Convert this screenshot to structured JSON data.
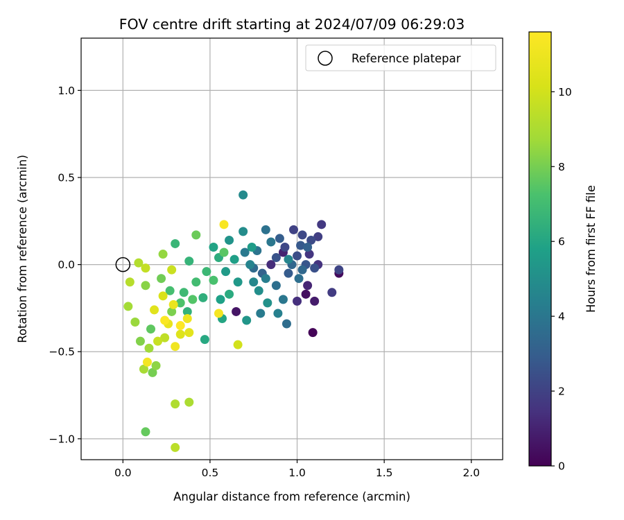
{
  "chart_data": {
    "type": "scatter",
    "title": "FOV centre drift starting at 2024/07/09 06:29:03",
    "xlabel": "Angular distance from reference (arcmin)",
    "ylabel": "Rotation from reference (arcmin)",
    "xlim": [
      -0.24,
      2.18
    ],
    "ylim": [
      -1.12,
      1.3
    ],
    "xticks": [
      0.0,
      0.5,
      1.0,
      1.5,
      2.0
    ],
    "xtick_labels": [
      "0.0",
      "0.5",
      "1.0",
      "1.5",
      "2.0"
    ],
    "yticks": [
      -1.0,
      -0.5,
      0.0,
      0.5,
      1.0
    ],
    "ytick_labels": [
      "−1.0",
      "−0.5",
      "0.0",
      "0.5",
      "1.0"
    ],
    "grid": true,
    "legend": {
      "position": "top-right",
      "entries": [
        "Reference platepar"
      ]
    },
    "reference_point": {
      "x": 0.0,
      "y": 0.0,
      "label": "Reference platepar"
    },
    "colorbar": {
      "label": "Hours from first FF file",
      "colormap": "viridis",
      "range": [
        0,
        11.6
      ],
      "ticks": [
        0,
        2,
        4,
        6,
        8,
        10
      ],
      "tick_labels": [
        "0",
        "2",
        "4",
        "6",
        "8",
        "10"
      ]
    },
    "points": [
      {
        "x": 1.09,
        "y": -0.39,
        "c": 0.1
      },
      {
        "x": 1.24,
        "y": -0.05,
        "c": 0.3
      },
      {
        "x": 1.05,
        "y": -0.17,
        "c": 0.4
      },
      {
        "x": 0.65,
        "y": -0.27,
        "c": 0.6
      },
      {
        "x": 1.1,
        "y": -0.21,
        "c": 0.8
      },
      {
        "x": 0.92,
        "y": 0.07,
        "c": 1.0
      },
      {
        "x": 1.06,
        "y": -0.12,
        "c": 1.1
      },
      {
        "x": 0.85,
        "y": 0.0,
        "c": 1.3
      },
      {
        "x": 1.0,
        "y": -0.21,
        "c": 1.4
      },
      {
        "x": 1.12,
        "y": 0.0,
        "c": 1.5
      },
      {
        "x": 1.07,
        "y": 0.06,
        "c": 1.6
      },
      {
        "x": 1.14,
        "y": 0.23,
        "c": 1.7
      },
      {
        "x": 1.2,
        "y": -0.16,
        "c": 1.8
      },
      {
        "x": 1.12,
        "y": 0.16,
        "c": 1.9
      },
      {
        "x": 0.98,
        "y": 0.2,
        "c": 2.0
      },
      {
        "x": 1.24,
        "y": -0.03,
        "c": 2.1
      },
      {
        "x": 1.03,
        "y": 0.17,
        "c": 2.2
      },
      {
        "x": 0.93,
        "y": 0.1,
        "c": 2.2
      },
      {
        "x": 1.08,
        "y": 0.14,
        "c": 2.3
      },
      {
        "x": 1.0,
        "y": 0.05,
        "c": 2.4
      },
      {
        "x": 1.1,
        "y": -0.02,
        "c": 2.5
      },
      {
        "x": 0.88,
        "y": 0.04,
        "c": 2.6
      },
      {
        "x": 1.05,
        "y": 0.0,
        "c": 2.7
      },
      {
        "x": 1.02,
        "y": 0.11,
        "c": 2.8
      },
      {
        "x": 0.95,
        "y": -0.05,
        "c": 2.9
      },
      {
        "x": 0.9,
        "y": 0.15,
        "c": 3.0
      },
      {
        "x": 1.06,
        "y": 0.1,
        "c": 3.1
      },
      {
        "x": 0.8,
        "y": -0.05,
        "c": 3.2
      },
      {
        "x": 0.97,
        "y": 0.0,
        "c": 3.3
      },
      {
        "x": 1.03,
        "y": -0.03,
        "c": 3.4
      },
      {
        "x": 0.75,
        "y": -0.02,
        "c": 3.5
      },
      {
        "x": 0.94,
        "y": -0.34,
        "c": 3.6
      },
      {
        "x": 1.01,
        "y": -0.08,
        "c": 3.7
      },
      {
        "x": 0.88,
        "y": -0.12,
        "c": 3.7
      },
      {
        "x": 0.82,
        "y": 0.2,
        "c": 3.8
      },
      {
        "x": 0.77,
        "y": 0.08,
        "c": 3.9
      },
      {
        "x": 0.92,
        "y": -0.2,
        "c": 4.0
      },
      {
        "x": 0.85,
        "y": 0.13,
        "c": 4.0
      },
      {
        "x": 0.7,
        "y": 0.07,
        "c": 4.1
      },
      {
        "x": 0.79,
        "y": -0.28,
        "c": 4.2
      },
      {
        "x": 0.82,
        "y": -0.08,
        "c": 4.3
      },
      {
        "x": 0.89,
        "y": -0.28,
        "c": 4.4
      },
      {
        "x": 0.73,
        "y": 0.0,
        "c": 4.5
      },
      {
        "x": 0.95,
        "y": 0.03,
        "c": 4.6
      },
      {
        "x": 0.75,
        "y": -0.1,
        "c": 4.7
      },
      {
        "x": 0.69,
        "y": 0.4,
        "c": 4.8
      },
      {
        "x": 0.69,
        "y": 0.19,
        "c": 4.9
      },
      {
        "x": 0.78,
        "y": -0.15,
        "c": 5.0
      },
      {
        "x": 0.83,
        "y": -0.22,
        "c": 5.1
      },
      {
        "x": 0.61,
        "y": 0.14,
        "c": 5.2
      },
      {
        "x": 0.71,
        "y": -0.32,
        "c": 5.3
      },
      {
        "x": 0.66,
        "y": -0.1,
        "c": 5.4
      },
      {
        "x": 0.59,
        "y": -0.04,
        "c": 5.5
      },
      {
        "x": 0.74,
        "y": 0.1,
        "c": 5.6
      },
      {
        "x": 0.64,
        "y": 0.03,
        "c": 5.7
      },
      {
        "x": 0.56,
        "y": -0.2,
        "c": 5.8
      },
      {
        "x": 0.52,
        "y": 0.1,
        "c": 5.9
      },
      {
        "x": 0.57,
        "y": -0.31,
        "c": 6.0
      },
      {
        "x": 0.47,
        "y": -0.43,
        "c": 6.1
      },
      {
        "x": 0.61,
        "y": -0.17,
        "c": 6.2
      },
      {
        "x": 0.55,
        "y": 0.04,
        "c": 6.3
      },
      {
        "x": 0.46,
        "y": -0.19,
        "c": 6.4
      },
      {
        "x": 0.37,
        "y": -0.27,
        "c": 6.5
      },
      {
        "x": 0.38,
        "y": 0.02,
        "c": 6.6
      },
      {
        "x": 0.3,
        "y": 0.12,
        "c": 6.7
      },
      {
        "x": 0.48,
        "y": -0.04,
        "c": 6.8
      },
      {
        "x": 0.35,
        "y": -0.16,
        "c": 6.9
      },
      {
        "x": 0.42,
        "y": -0.1,
        "c": 7.0
      },
      {
        "x": 0.27,
        "y": -0.15,
        "c": 7.1
      },
      {
        "x": 0.52,
        "y": -0.09,
        "c": 7.2
      },
      {
        "x": 0.33,
        "y": -0.22,
        "c": 7.3
      },
      {
        "x": 0.4,
        "y": -0.2,
        "c": 7.4
      },
      {
        "x": 0.58,
        "y": 0.07,
        "c": 7.5
      },
      {
        "x": 0.16,
        "y": -0.37,
        "c": 7.6
      },
      {
        "x": 0.13,
        "y": -0.96,
        "c": 7.7
      },
      {
        "x": 0.42,
        "y": 0.17,
        "c": 7.8
      },
      {
        "x": 0.22,
        "y": -0.08,
        "c": 7.9
      },
      {
        "x": 0.17,
        "y": -0.62,
        "c": 8.0
      },
      {
        "x": 0.28,
        "y": -0.27,
        "c": 8.1
      },
      {
        "x": 0.1,
        "y": -0.44,
        "c": 8.2
      },
      {
        "x": 0.13,
        "y": -0.12,
        "c": 8.3
      },
      {
        "x": 0.19,
        "y": -0.58,
        "c": 8.4
      },
      {
        "x": 0.23,
        "y": 0.06,
        "c": 8.5
      },
      {
        "x": 0.07,
        "y": -0.33,
        "c": 8.6
      },
      {
        "x": 0.15,
        "y": -0.48,
        "c": 8.7
      },
      {
        "x": 0.03,
        "y": -0.24,
        "c": 8.8
      },
      {
        "x": 0.12,
        "y": -0.6,
        "c": 8.9
      },
      {
        "x": 0.38,
        "y": -0.79,
        "c": 9.0
      },
      {
        "x": 0.3,
        "y": -0.8,
        "c": 9.1
      },
      {
        "x": 0.09,
        "y": 0.01,
        "c": 9.2
      },
      {
        "x": 0.04,
        "y": -0.1,
        "c": 9.3
      },
      {
        "x": 0.3,
        "y": -1.05,
        "c": 9.4
      },
      {
        "x": 0.24,
        "y": -0.42,
        "c": 9.5
      },
      {
        "x": 0.13,
        "y": -0.02,
        "c": 9.6
      },
      {
        "x": 0.2,
        "y": -0.44,
        "c": 9.7
      },
      {
        "x": 0.28,
        "y": -0.03,
        "c": 9.8
      },
      {
        "x": 0.66,
        "y": -0.46,
        "c": 10.0
      },
      {
        "x": 0.23,
        "y": -0.18,
        "c": 10.2
      },
      {
        "x": 0.33,
        "y": -0.4,
        "c": 10.4
      },
      {
        "x": 0.18,
        "y": -0.26,
        "c": 10.5
      },
      {
        "x": 0.38,
        "y": -0.39,
        "c": 10.6
      },
      {
        "x": 0.26,
        "y": -0.34,
        "c": 10.8
      },
      {
        "x": 0.29,
        "y": -0.23,
        "c": 10.9
      },
      {
        "x": 0.37,
        "y": -0.31,
        "c": 11.0
      },
      {
        "x": 0.3,
        "y": -0.47,
        "c": 11.1
      },
      {
        "x": 0.14,
        "y": -0.56,
        "c": 11.2
      },
      {
        "x": 0.55,
        "y": -0.28,
        "c": 11.3
      },
      {
        "x": 0.58,
        "y": 0.23,
        "c": 11.4
      },
      {
        "x": 0.24,
        "y": -0.32,
        "c": 11.5
      },
      {
        "x": 0.33,
        "y": -0.35,
        "c": 11.6
      }
    ]
  }
}
